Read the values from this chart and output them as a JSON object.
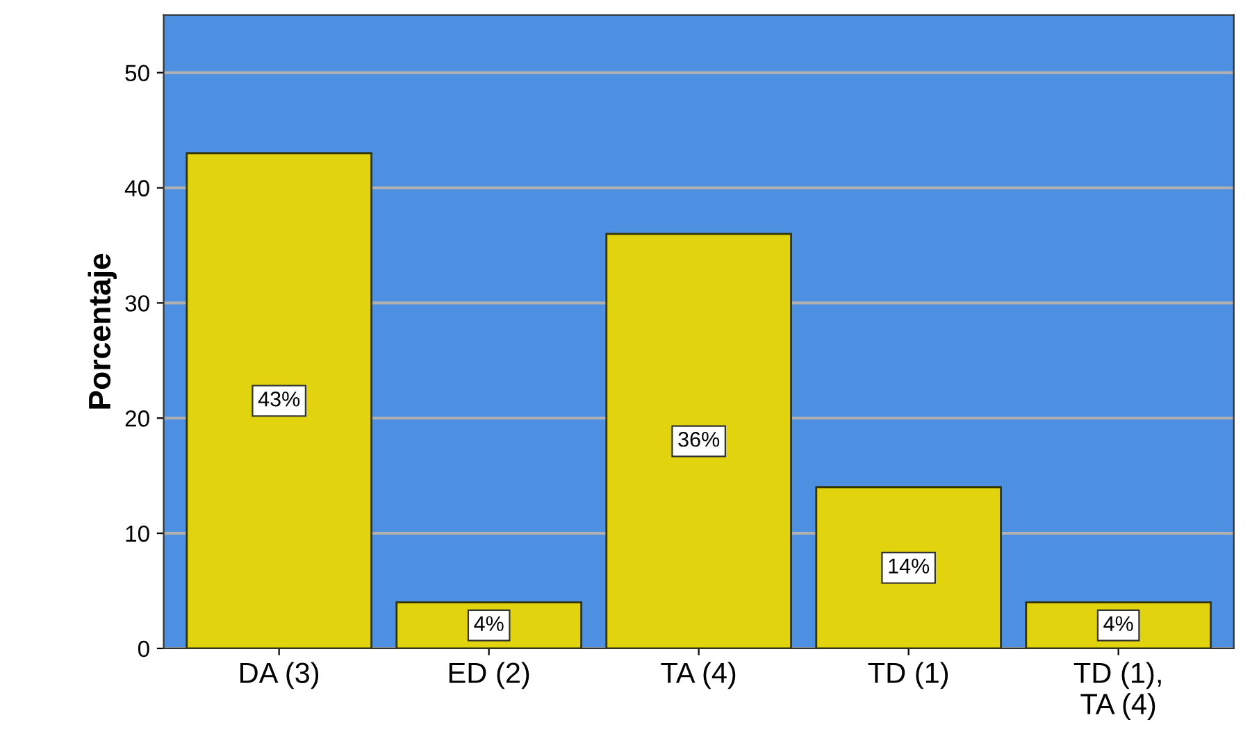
{
  "chart_data": {
    "type": "bar",
    "ylabel": "Porcentaje",
    "categories": [
      "DA (3)",
      "ED (2)",
      "TA (4)",
      "TD (1)",
      "TD (1),\nTA (4)"
    ],
    "values": [
      43,
      4,
      36,
      14,
      4
    ],
    "value_labels": [
      "43%",
      "4%",
      "36%",
      "14%",
      "4%"
    ],
    "color": "#e1d40f",
    "ylim": [
      0,
      55
    ],
    "yticks": [
      0,
      10,
      20,
      30,
      40,
      50
    ],
    "grid": "y",
    "legend": false
  }
}
